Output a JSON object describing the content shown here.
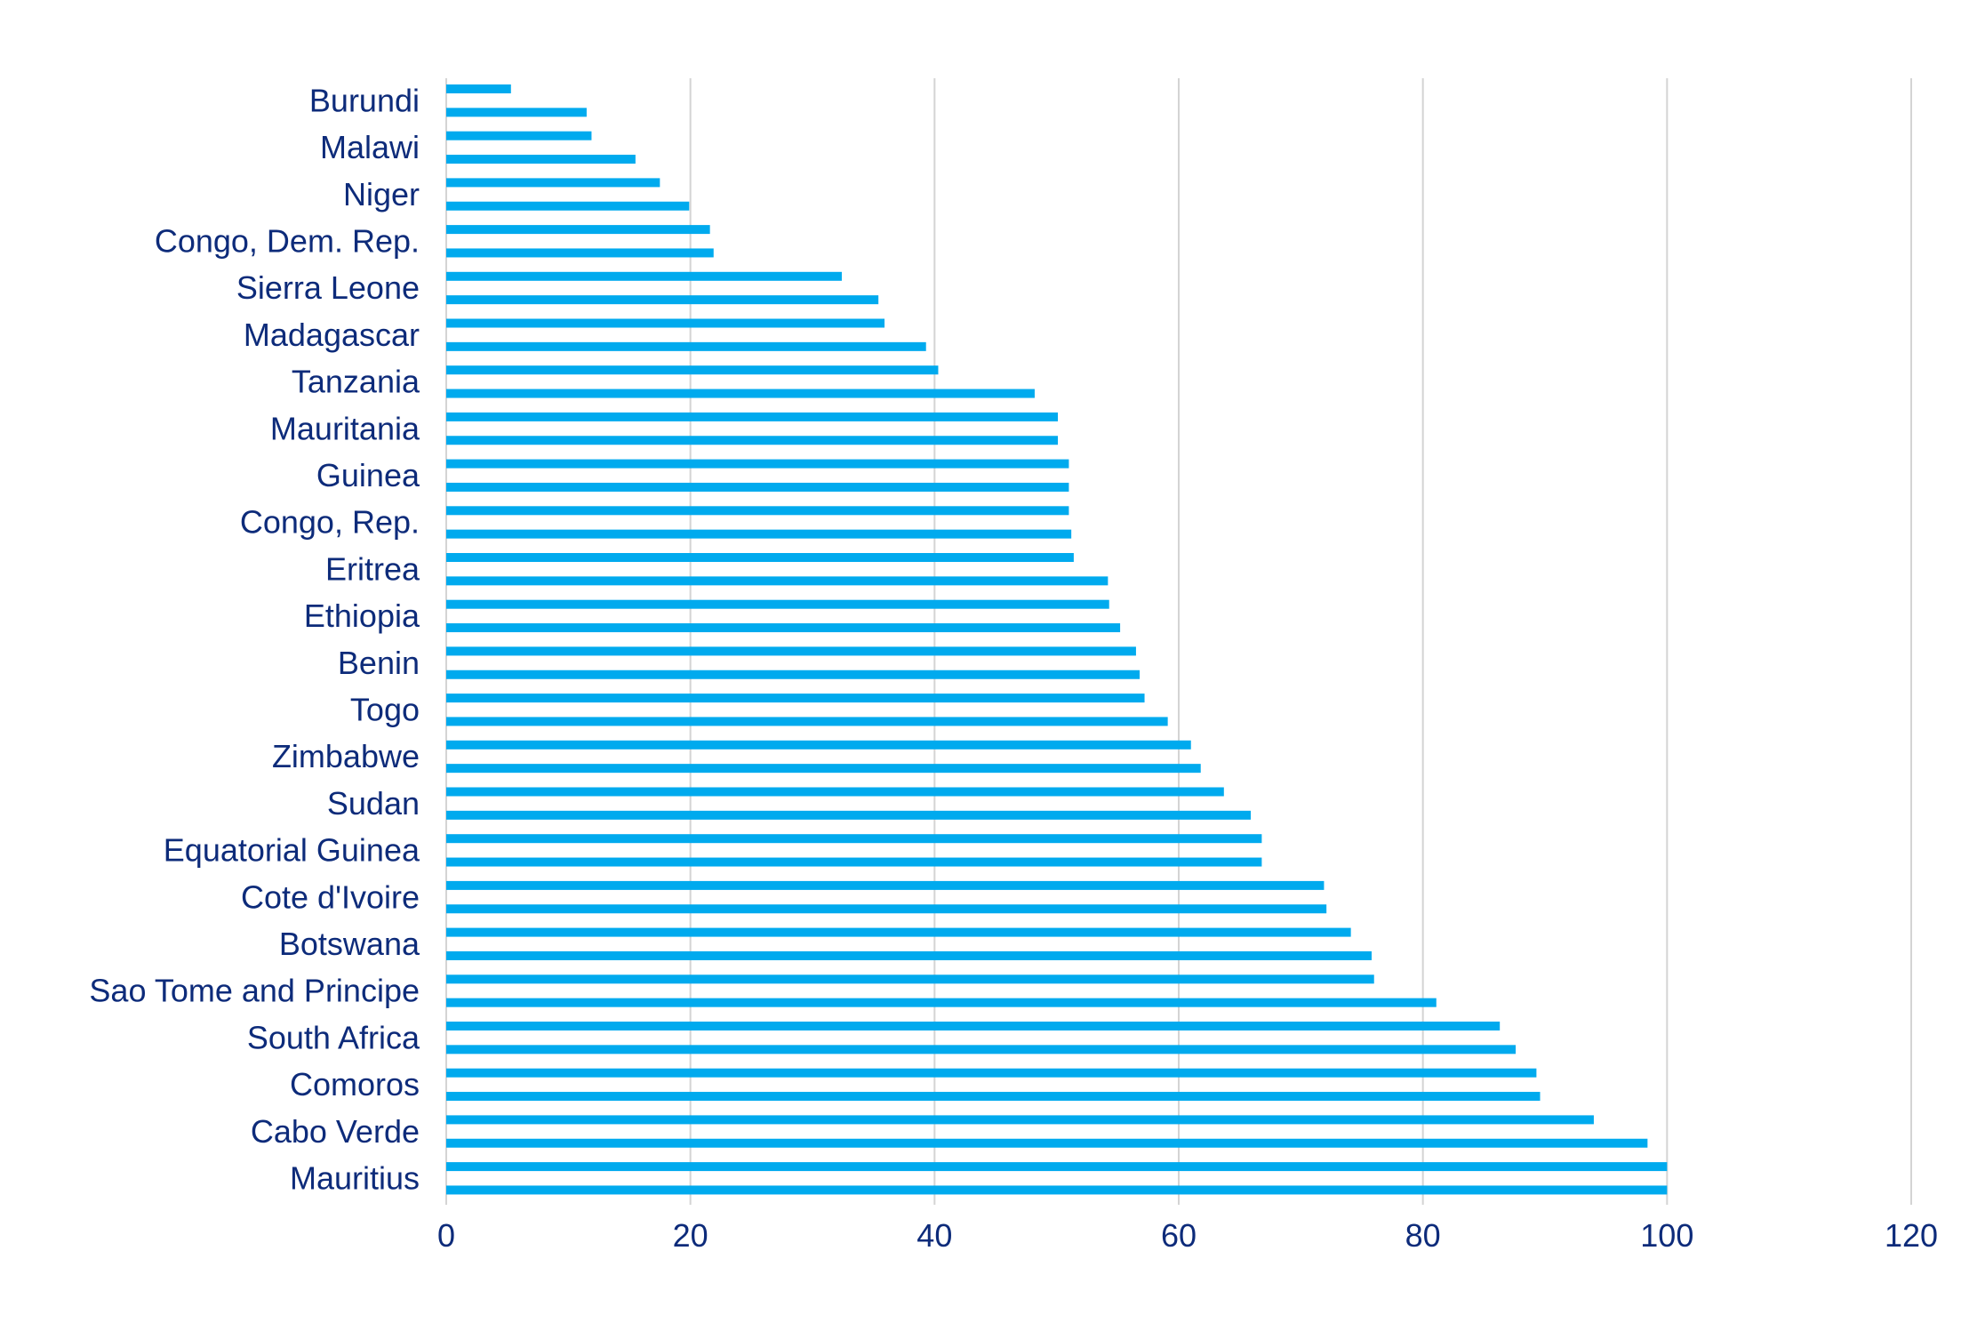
{
  "chart_data": {
    "type": "bar",
    "orientation": "horizontal",
    "title": "",
    "xlabel": "",
    "ylabel": "",
    "xlim": [
      0,
      120
    ],
    "xticks": [
      0,
      20,
      40,
      60,
      80,
      100,
      120
    ],
    "grid": "vertical",
    "bar_color": "#00aaee",
    "label_color": "#0d2b7a",
    "category_labels": [
      "Burundi",
      "Malawi",
      "Niger",
      "Congo, Dem. Rep.",
      "Sierra Leone",
      "Madagascar",
      "Tanzania",
      "Mauritania",
      "Guinea",
      "Congo, Rep.",
      "Eritrea",
      "Ethiopia",
      "Benin",
      "Togo",
      "Zimbabwe",
      "Sudan",
      "Equatorial Guinea",
      "Cote d'Ivoire",
      "Botswana",
      "Sao Tome and Principe",
      "South Africa",
      "Comoros",
      "Cabo Verde",
      "Mauritius"
    ],
    "values": [
      5.3,
      11.5,
      11.9,
      15.5,
      17.5,
      19.9,
      21.6,
      21.9,
      32.4,
      35.4,
      35.9,
      39.3,
      40.3,
      48.2,
      50.1,
      50.1,
      51.0,
      51.0,
      51.0,
      51.2,
      51.4,
      54.2,
      54.3,
      55.2,
      56.5,
      56.8,
      57.2,
      59.1,
      61.0,
      61.8,
      63.7,
      65.9,
      66.8,
      66.8,
      71.9,
      72.1,
      74.1,
      75.8,
      76.0,
      81.1,
      86.3,
      87.6,
      89.3,
      89.6,
      94.0,
      98.4,
      100.0,
      100.0
    ]
  }
}
